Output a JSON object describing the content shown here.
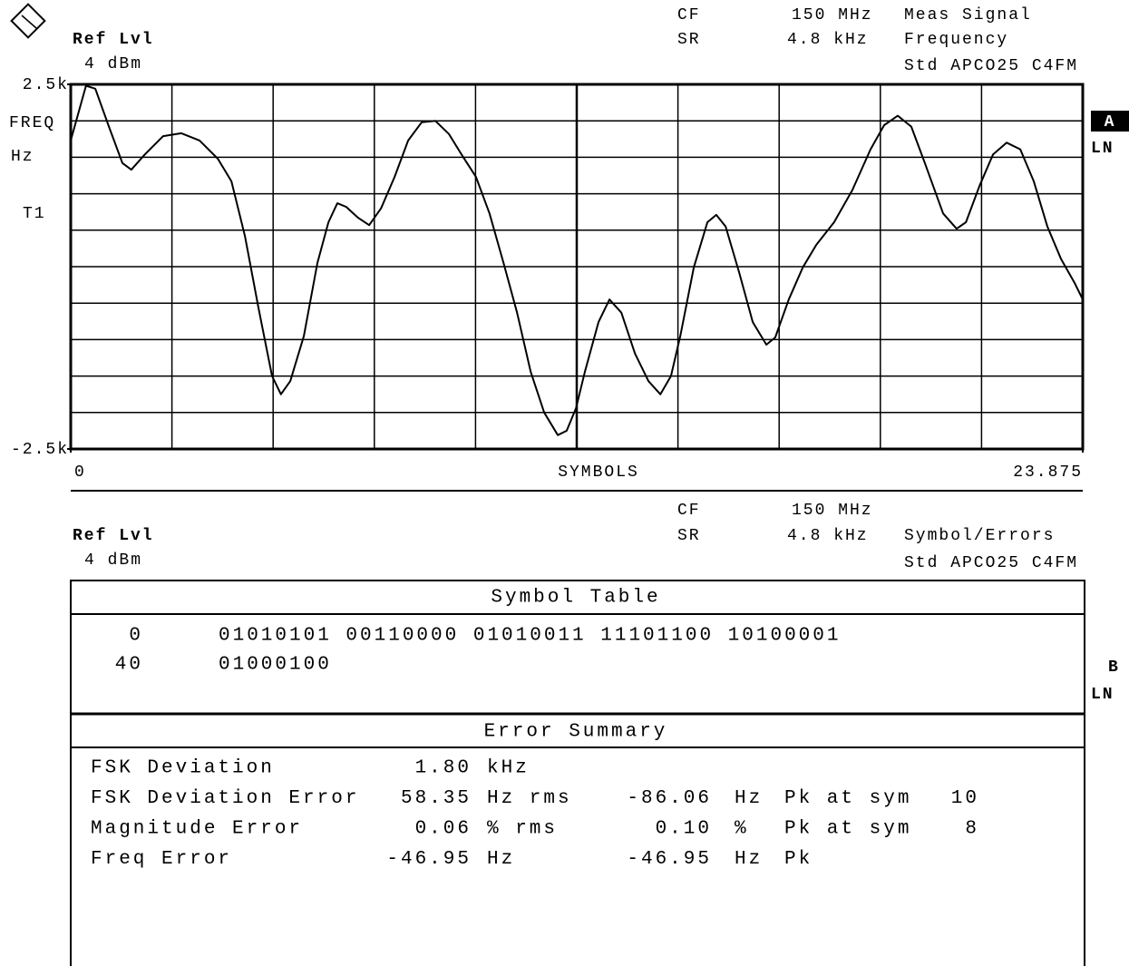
{
  "header_a": {
    "ref_lvl_label": "Ref Lvl",
    "ref_lvl": "4 dBm",
    "cf_label": "CF",
    "cf": "150 MHz",
    "sr_label": "SR",
    "sr": "4.8 kHz",
    "mode": "Meas Signal",
    "result": "Frequency",
    "standard": "Std APCO25 C4FM",
    "screen": "A",
    "scale": "LN"
  },
  "chart_data": {
    "type": "line",
    "ylabel": "FREQ",
    "yunit": "Hz",
    "trace_label": "T1",
    "xlabel": "SYMBOLS",
    "x": [
      0,
      0.36,
      0.58,
      0.9,
      1.22,
      1.43,
      1.75,
      2.18,
      2.61,
      3.04,
      3.47,
      3.79,
      4.11,
      4.43,
      4.75,
      4.96,
      5.18,
      5.5,
      5.82,
      6.08,
      6.29,
      6.5,
      6.78,
      7.04,
      7.32,
      7.64,
      7.96,
      8.28,
      8.6,
      8.92,
      9.24,
      9.56,
      9.88,
      10.21,
      10.53,
      10.85,
      11.17,
      11.49,
      11.7,
      11.92,
      12.13,
      12.45,
      12.71,
      12.99,
      13.31,
      13.63,
      13.91,
      14.16,
      14.38,
      14.7,
      15.02,
      15.23,
      15.45,
      15.77,
      16.09,
      16.41,
      16.62,
      16.94,
      17.27,
      17.59,
      18.01,
      18.44,
      18.87,
      19.19,
      19.51,
      19.83,
      20.15,
      20.58,
      20.9,
      21.12,
      21.44,
      21.76,
      22.08,
      22.4,
      22.72,
      23.04,
      23.36,
      23.68,
      23.875
    ],
    "series": [
      {
        "color": "#000000",
        "values": [
          1730,
          2480,
          2440,
          1920,
          1420,
          1330,
          1540,
          1790,
          1830,
          1730,
          1480,
          1170,
          420,
          -570,
          -1500,
          -1750,
          -1570,
          -950,
          50,
          610,
          870,
          820,
          670,
          570,
          800,
          1230,
          1730,
          1980,
          2000,
          1820,
          1520,
          1230,
          730,
          50,
          -630,
          -1440,
          -2000,
          -2310,
          -2250,
          -1940,
          -1440,
          -760,
          -450,
          -630,
          -1190,
          -1570,
          -1750,
          -1500,
          -950,
          -10,
          610,
          710,
          550,
          -80,
          -760,
          -1070,
          -970,
          -450,
          -10,
          300,
          610,
          1050,
          1610,
          1940,
          2070,
          1920,
          1420,
          730,
          520,
          610,
          1110,
          1540,
          1700,
          1610,
          1170,
          550,
          110,
          -220,
          -450
        ]
      }
    ],
    "xlim": [
      0,
      23.875
    ],
    "xticks": [
      0,
      23.875
    ],
    "ylim": [
      -2500,
      2500
    ],
    "yticks": [
      {
        "value": 2500,
        "label": "2.5k"
      },
      {
        "value": -2500,
        "label": "-2.5k"
      }
    ],
    "grid": true
  },
  "header_b": {
    "ref_lvl_label": "Ref Lvl",
    "ref_lvl": "4 dBm",
    "cf_label": "CF",
    "cf": "150 MHz",
    "sr_label": "SR",
    "sr": "4.8 kHz",
    "result": "Symbol/Errors",
    "standard": "Std APCO25 C4FM",
    "screen": "B",
    "scale": "LN"
  },
  "symbol_table": {
    "title": "Symbol Table",
    "rows": [
      {
        "index": 0,
        "bits": "01010101 00110000 01010011 11101100 10100001"
      },
      {
        "index": 40,
        "bits": "01000100"
      }
    ]
  },
  "error_summary": {
    "title": "Error Summary",
    "rows": [
      {
        "label": "FSK Deviation",
        "value1": "1.80",
        "unit1": "kHz"
      },
      {
        "label": "FSK Deviation Error",
        "value1": "58.35",
        "unit1": "Hz rms",
        "value2": "-86.06",
        "unit2": "Hz",
        "pk": "Pk at sym",
        "sym": "10"
      },
      {
        "label": "Magnitude Error",
        "value1": "0.06",
        "unit1": "% rms",
        "value2": "0.10",
        "unit2": "%",
        "pk": "Pk at sym",
        "sym": "8"
      },
      {
        "label": "Freq Error",
        "value1": "-46.95",
        "unit1": "Hz",
        "value2": "-46.95",
        "unit2": "Hz",
        "pk": "Pk"
      }
    ]
  }
}
